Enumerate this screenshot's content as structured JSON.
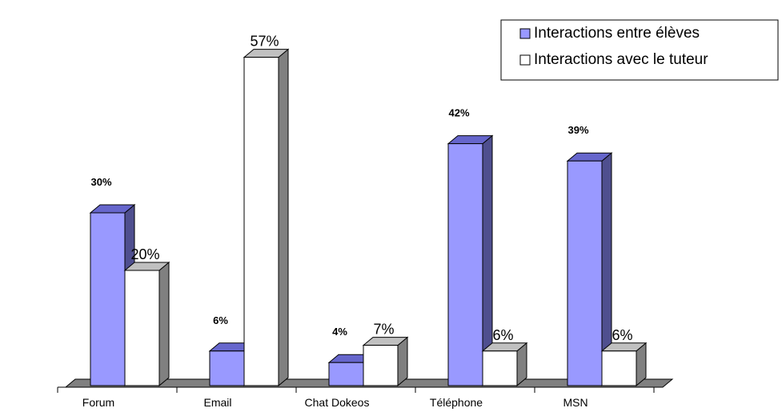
{
  "chart_data": {
    "type": "bar",
    "categories": [
      "Forum",
      "Email",
      "Chat Dokeos",
      "Téléphone",
      "MSN"
    ],
    "series": [
      {
        "name": "Interactions entre élèves",
        "values": [
          30,
          6,
          4,
          42,
          39
        ],
        "labels": [
          "30%",
          "6%",
          "4%",
          "42%",
          "39%"
        ],
        "color": "#9999ff",
        "side_color": "#4f4f8f",
        "top_color": "#6666cc"
      },
      {
        "name": "Interactions avec le tuteur",
        "values": [
          20,
          57,
          7,
          6,
          6
        ],
        "labels": [
          "20%",
          "57%",
          "7%",
          "6%",
          "6%"
        ],
        "color": "#ffffff",
        "side_color": "#808080",
        "top_color": "#c0c0c0"
      }
    ],
    "ylim": [
      0,
      60
    ],
    "legend_position": "top-right",
    "grid": false,
    "style": "3d-column"
  }
}
